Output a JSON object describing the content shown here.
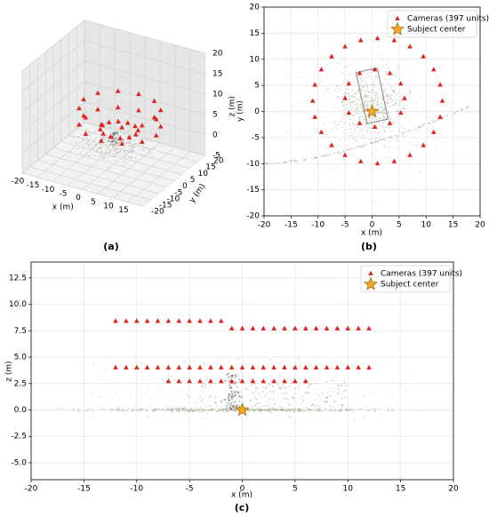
{
  "chart_data": [
    {
      "type": "scatter3d",
      "panel_label": "(a)",
      "xlabel": "x (m)",
      "ylabel": "y (m)",
      "zlabel": "z (m)",
      "xlim": [
        -20,
        20
      ],
      "ylim": [
        -20,
        20
      ],
      "zlim": [
        -5,
        20
      ],
      "xticks": [
        -20,
        -15,
        -10,
        -5,
        0,
        5,
        10,
        15
      ],
      "yticks": [
        -20,
        -15,
        -10,
        -5,
        0,
        5,
        10,
        15,
        20
      ],
      "zticks": [
        -5,
        0,
        5,
        10,
        15,
        20
      ],
      "series": [
        {
          "color": "#e3211c",
          "marker": "triangle",
          "x": [
            13,
            11.4,
            7,
            1,
            -5,
            -9.4,
            -11,
            -9.4,
            -5,
            1,
            7,
            11.4,
            13,
            11.4,
            7,
            1,
            -5,
            -9.4,
            -11,
            -9.4,
            -5,
            1,
            7,
            11.4,
            6,
            5.3,
            3.3,
            0.5,
            -2.3,
            -4.3,
            -5,
            -4.3,
            -2.3,
            0.5,
            3.3,
            5.3
          ],
          "y": [
            2,
            8,
            12.4,
            14,
            12.4,
            8,
            2,
            -4,
            -8.4,
            -10,
            -8.4,
            -4,
            2,
            8,
            12.4,
            14,
            12.4,
            8,
            2,
            -4,
            -8.4,
            -10,
            -8.4,
            -4,
            2.5,
            5.3,
            7.3,
            8,
            7.3,
            5.3,
            2.5,
            -0.3,
            -2.3,
            -3,
            -2.3,
            -0.3
          ],
          "z": [
            8,
            8,
            8,
            8,
            8,
            8,
            8,
            8,
            8,
            8,
            8,
            8,
            4,
            4,
            4,
            4,
            4,
            4,
            4,
            4,
            4,
            4,
            4,
            4,
            2.7,
            2.7,
            2.7,
            2.7,
            2.7,
            2.7,
            2.7,
            2.7,
            2.7,
            2.7,
            2.7,
            2.7
          ]
        }
      ]
    },
    {
      "type": "scatter",
      "panel_label": "(b)",
      "xlabel": "x (m)",
      "ylabel": "y (m)",
      "xlim": [
        -20,
        20
      ],
      "ylim": [
        -20,
        20
      ],
      "xticks": [
        -20,
        -15,
        -10,
        -5,
        0,
        5,
        10,
        15,
        20
      ],
      "yticks": [
        -20,
        -15,
        -10,
        -5,
        0,
        5,
        10,
        15,
        20
      ],
      "grid": true,
      "legend": "upper right",
      "series": [
        {
          "name": "Cameras (397 units)",
          "color": "#e3211c",
          "marker": "triangle",
          "x": [
            13,
            12.6,
            11.4,
            9.5,
            7,
            4.1,
            1,
            -2.1,
            -5,
            -7.5,
            -9.4,
            -10.6,
            -11,
            -10.6,
            -9.4,
            -7.5,
            -5,
            -2.1,
            1,
            4.1,
            7,
            9.5,
            11.4,
            12.6,
            6,
            5.3,
            3.3,
            0.5,
            -2.3,
            -4.3,
            -5,
            -4.3,
            -2.3,
            0.5,
            3.3,
            5.3
          ],
          "y": [
            2,
            5.1,
            8,
            10.5,
            12.4,
            13.6,
            14,
            13.6,
            12.4,
            10.5,
            8,
            5.1,
            2,
            -1.1,
            -4,
            -6.5,
            -8.4,
            -9.6,
            -10,
            -9.6,
            -8.4,
            -6.5,
            -4,
            -1.1,
            2.5,
            5.3,
            7.3,
            8,
            7.3,
            5.3,
            2.5,
            -0.3,
            -2.3,
            -3,
            -2.3,
            -0.3
          ]
        },
        {
          "name": "Subject center",
          "color": "#f5a623",
          "marker": "star",
          "x": [
            0
          ],
          "y": [
            0
          ]
        }
      ]
    },
    {
      "type": "scatter",
      "panel_label": "(c)",
      "xlabel": "x (m)",
      "ylabel": "z (m)",
      "xlim": [
        -20,
        20
      ],
      "ylim": [
        -6.6,
        14
      ],
      "xticks": [
        -20,
        -15,
        -10,
        -5,
        0,
        5,
        10,
        15,
        20
      ],
      "yticks": [
        {
          "value": -5,
          "label": "-5.0"
        },
        -2.5,
        {
          "value": 0,
          "label": "0.0"
        },
        2.5,
        {
          "value": 5,
          "label": "5.0"
        },
        7.5,
        {
          "value": 10,
          "label": "10.0"
        },
        12.5
      ],
      "grid": true,
      "legend": "upper right",
      "series": [
        {
          "name": "Cameras (397 units)",
          "color": "#e3211c",
          "marker": "triangle",
          "x": [
            -12,
            -11,
            -10,
            -9,
            -8,
            -7,
            -6,
            -5,
            -4,
            -3,
            -2,
            -1,
            0,
            1,
            2,
            3,
            4,
            5,
            6,
            7,
            8,
            9,
            10,
            11,
            12,
            -12,
            -11,
            -10,
            -9,
            -8,
            -7,
            -6,
            -5,
            -4,
            -3,
            -2,
            -1,
            0,
            1,
            2,
            3,
            4,
            5,
            6,
            7,
            8,
            9,
            10,
            11,
            12,
            -7,
            -6,
            -5,
            -4,
            -3,
            -2,
            -1,
            0,
            1,
            2,
            3,
            4,
            5,
            6
          ],
          "y": [
            8.4,
            8.4,
            8.4,
            8.4,
            8.4,
            8.4,
            8.4,
            8.4,
            8.4,
            8.4,
            8.4,
            7.7,
            7.7,
            7.7,
            7.7,
            7.7,
            7.7,
            7.7,
            7.7,
            7.7,
            7.7,
            7.7,
            7.7,
            7.7,
            7.7,
            4,
            4,
            4,
            4,
            4,
            4,
            4,
            4,
            4,
            4,
            4,
            4,
            4,
            4,
            4,
            4,
            4,
            4,
            4,
            4,
            4,
            4,
            4,
            4,
            4,
            2.7,
            2.7,
            2.7,
            2.7,
            2.7,
            2.7,
            2.7,
            2.7,
            2.7,
            2.7,
            2.7,
            2.7,
            2.7,
            2.7
          ]
        },
        {
          "name": "Subject center",
          "color": "#f5a623",
          "marker": "star",
          "x": [
            0
          ],
          "y": [
            0
          ]
        }
      ]
    }
  ]
}
